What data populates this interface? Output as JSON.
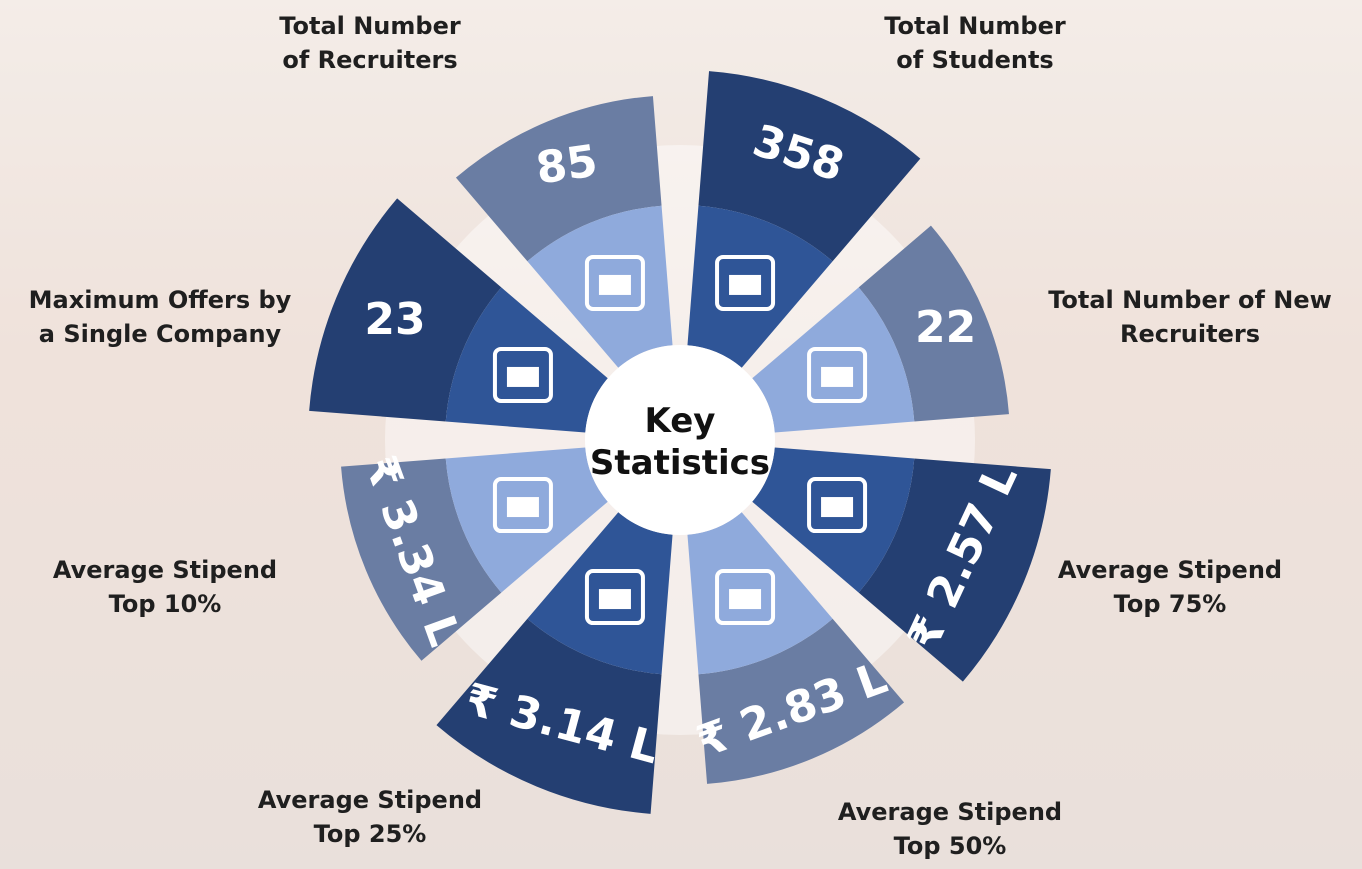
{
  "title": "Key Statistics",
  "items": [
    {
      "label": [
        "Total Number",
        "of Recruiters"
      ],
      "value": "85"
    },
    {
      "label": [
        "Total Number",
        "of Students"
      ],
      "value": "358"
    },
    {
      "label": [
        "Total Number of New",
        "Recruiters"
      ],
      "value": "22"
    },
    {
      "label": [
        "Average Stipend",
        "Top 75%"
      ],
      "value": "₹ 2.57 L"
    },
    {
      "label": [
        "Average Stipend",
        "Top 50%"
      ],
      "value": "₹ 2.83 L"
    },
    {
      "label": [
        "Average Stipend",
        "Top 25%"
      ],
      "value": "₹ 3.14 L"
    },
    {
      "label": [
        "Average Stipend",
        "Top 10%"
      ],
      "value": "₹ 3.34 L"
    },
    {
      "label": [
        "Maximum Offers by",
        "a Single Company"
      ],
      "value": "23"
    }
  ]
}
